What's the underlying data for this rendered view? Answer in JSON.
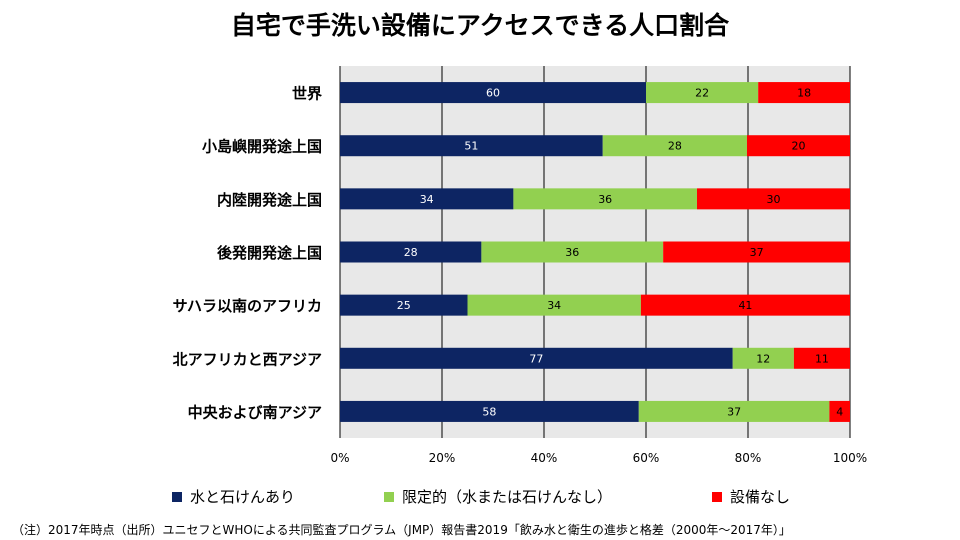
{
  "title": "自宅で手洗い設備にアクセスできる人口割合",
  "colors": {
    "basic": "#0d2563",
    "limited": "#92d050",
    "none": "#ff0000",
    "plot_bg": "#e8e8e8",
    "grid": "#000000"
  },
  "chart_data": {
    "type": "bar",
    "orientation": "horizontal",
    "stacked": "percent",
    "categories": [
      "世界",
      "小島嶼開発途上国",
      "内陸開発途上国",
      "後発開発途上国",
      "サハラ以南のアフリカ",
      "北アフリカと西アジア",
      "中央および南アジア"
    ],
    "series": [
      {
        "name": "水と石けんあり",
        "color": "#0d2563",
        "values": [
          60,
          51,
          34,
          28,
          25,
          77,
          58
        ]
      },
      {
        "name": "限定的（水または石けんなし）",
        "color": "#92d050",
        "values": [
          22,
          28,
          36,
          36,
          34,
          12,
          37
        ]
      },
      {
        "name": "設備なし",
        "color": "#ff0000",
        "values": [
          18,
          20,
          30,
          37,
          41,
          11,
          4
        ]
      }
    ],
    "xlim": [
      0,
      100
    ],
    "xticks": [
      "0%",
      "20%",
      "40%",
      "60%",
      "80%",
      "100%"
    ],
    "legend_position": "bottom",
    "grid": true
  },
  "legend": {
    "items": [
      "水と石けんあり",
      "限定的（水または石けんなし）",
      "設備なし"
    ]
  },
  "footnote": "（注）2017年時点（出所）ユニセフとWHOによる共同監査プログラム（JMP）報告書2019「飲み水と衛生の進歩と格差（2000年～2017年）」"
}
